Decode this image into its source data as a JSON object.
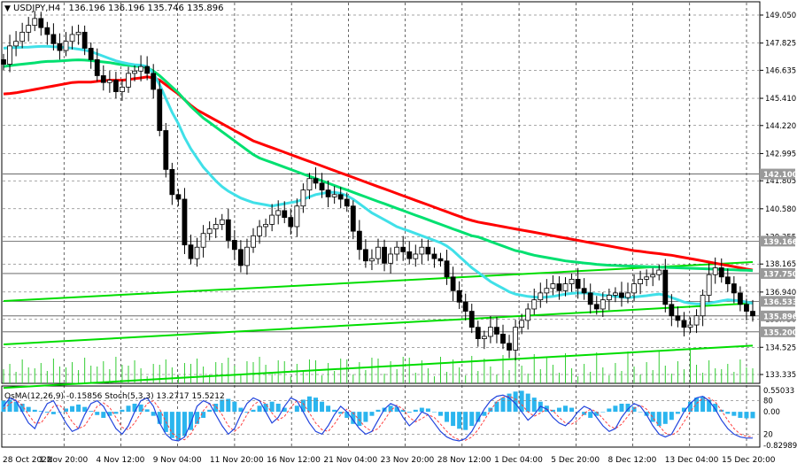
{
  "header": {
    "symbol": "USDJPY,H4",
    "ohlc": "136.196 136.196 135.746 135.896"
  },
  "indicator_header": "OsMA(12,26,9) -0.15856 Stoch(5,3,3) 13.2717 15.5212",
  "colors": {
    "candle": "#000000",
    "ema_red": "#ff0000",
    "ema_green": "#00e070",
    "ema_cyan": "#40e0e8",
    "channel": "#00dd00",
    "osma": "#2bb5ee",
    "stoch_main": "#2244dd",
    "stoch_signal": "#ff4040",
    "grid": "#000000",
    "level_line": "#555555"
  },
  "chart_data": [
    {
      "type": "line",
      "title": "USDJPY,H4",
      "price_ticks": [
        "149.050",
        "147.825",
        "146.635",
        "145.410",
        "144.220",
        "142.995",
        "141.805",
        "140.580",
        "139.355",
        "138.165",
        "136.940",
        "135.750",
        "134.525",
        "133.335"
      ],
      "ylim": [
        133.335,
        149.05
      ],
      "x_tick_labels": [
        "28 Oct 2022",
        "1 Nov 20:00",
        "4 Nov 12:00",
        "9 Nov 04:00",
        "11 Nov 20:00",
        "16 Nov 12:00",
        "21 Nov 04:00",
        "23 Nov 20:00",
        "28 Nov 12:00",
        "1 Dec 04:00",
        "5 Dec 20:00",
        "8 Dec 12:00",
        "13 Dec 04:00",
        "15 Dec 20:00"
      ],
      "level_lines": [
        {
          "value": 142.1,
          "label": "142.100"
        },
        {
          "value": 139.166,
          "label": "139.166"
        },
        {
          "value": 137.75,
          "label": "137.750"
        },
        {
          "value": 136.533,
          "label": "136.533"
        },
        {
          "value": 135.896,
          "label": "135.896"
        },
        {
          "value": 135.2,
          "label": "135.200"
        }
      ],
      "close": [
        146.9,
        147.7,
        147.9,
        148.3,
        148.6,
        148.9,
        148.5,
        148.2,
        147.8,
        147.5,
        147.9,
        148.2,
        148.3,
        147.6,
        147.1,
        146.4,
        146.1,
        146.2,
        145.7,
        145.9,
        146.5,
        146.6,
        146.8,
        146.5,
        145.8,
        144.0,
        142.3,
        141.2,
        141.0,
        139.0,
        138.4,
        138.9,
        139.5,
        139.7,
        139.9,
        140.1,
        139.2,
        138.8,
        138.1,
        138.9,
        139.4,
        139.8,
        139.9,
        140.3,
        140.5,
        140.2,
        139.8,
        140.7,
        141.4,
        141.9,
        141.7,
        141.4,
        141.1,
        141.2,
        141.0,
        140.7,
        139.6,
        138.8,
        138.3,
        138.4,
        138.9,
        138.2,
        138.6,
        138.9,
        138.7,
        138.4,
        138.6,
        138.9,
        138.6,
        138.4,
        138.3,
        137.6,
        137.0,
        136.5,
        136.1,
        135.4,
        134.9,
        135.0,
        135.4,
        135.1,
        134.7,
        134.4,
        135.4,
        135.7,
        136.2,
        136.6,
        136.9,
        137.1,
        137.3,
        137.0,
        137.3,
        137.5,
        137.1,
        136.9,
        136.4,
        136.2,
        136.6,
        136.8,
        136.9,
        136.7,
        136.9,
        137.3,
        137.5,
        137.6,
        137.7,
        137.9,
        136.4,
        135.9,
        135.7,
        135.4,
        135.5,
        135.9,
        136.8,
        137.7,
        138.0,
        137.6,
        137.3,
        136.9,
        136.4,
        136.1,
        135.9
      ],
      "series": [
        {
          "values": [
            145.6,
            145.62,
            145.65,
            145.7,
            145.75,
            145.8,
            145.85,
            145.9,
            145.95,
            146.0,
            146.05,
            146.1,
            146.12,
            146.12,
            146.12,
            146.15,
            146.18,
            146.2,
            146.2,
            146.2,
            146.23,
            146.27,
            146.3,
            146.35,
            146.3,
            146.2,
            146.0,
            145.8,
            145.6,
            145.35,
            145.1,
            144.9,
            144.75,
            144.6,
            144.45,
            144.3,
            144.15,
            144.0,
            143.85,
            143.7,
            143.55,
            143.45,
            143.35,
            143.25,
            143.15,
            143.05,
            142.95,
            142.85,
            142.75,
            142.65,
            142.55,
            142.45,
            142.35,
            142.25,
            142.15,
            142.05,
            141.95,
            141.85,
            141.75,
            141.65,
            141.55,
            141.45,
            141.35,
            141.25,
            141.15,
            141.05,
            140.95,
            140.85,
            140.75,
            140.65,
            140.55,
            140.45,
            140.35,
            140.25,
            140.15,
            140.07,
            140.0,
            139.95,
            139.9,
            139.85,
            139.8,
            139.75,
            139.7,
            139.65,
            139.6,
            139.55,
            139.5,
            139.45,
            139.4,
            139.35,
            139.3,
            139.25,
            139.2,
            139.15,
            139.1,
            139.05,
            139.0,
            138.95,
            138.9,
            138.85,
            138.8,
            138.75,
            138.72,
            138.68,
            138.65,
            138.62,
            138.58,
            138.55,
            138.5,
            138.45,
            138.4,
            138.35,
            138.3,
            138.25,
            138.2,
            138.15,
            138.1,
            138.05,
            138.0,
            137.95,
            137.9
          ]
        },
        {
          "values": [
            146.8,
            146.84,
            146.87,
            146.9,
            146.93,
            146.96,
            147.0,
            147.02,
            147.03,
            147.04,
            147.06,
            147.08,
            147.09,
            147.08,
            147.06,
            147.03,
            147.0,
            146.97,
            146.92,
            146.88,
            146.85,
            146.82,
            146.8,
            146.75,
            146.6,
            146.4,
            146.15,
            145.9,
            145.65,
            145.35,
            145.05,
            144.8,
            144.55,
            144.35,
            144.15,
            143.95,
            143.75,
            143.55,
            143.35,
            143.15,
            142.95,
            142.8,
            142.7,
            142.6,
            142.5,
            142.4,
            142.3,
            142.2,
            142.1,
            142.0,
            141.9,
            141.8,
            141.7,
            141.6,
            141.5,
            141.4,
            141.3,
            141.2,
            141.1,
            141.0,
            140.9,
            140.8,
            140.7,
            140.6,
            140.5,
            140.4,
            140.3,
            140.2,
            140.1,
            140.0,
            139.9,
            139.8,
            139.7,
            139.6,
            139.5,
            139.4,
            139.35,
            139.25,
            139.15,
            139.05,
            138.95,
            138.85,
            138.75,
            138.7,
            138.62,
            138.55,
            138.5,
            138.45,
            138.4,
            138.35,
            138.3,
            138.27,
            138.24,
            138.21,
            138.18,
            138.15,
            138.13,
            138.11,
            138.1,
            138.09,
            138.08,
            138.07,
            138.06,
            138.05,
            138.04,
            138.03,
            138.02,
            138.01,
            138.0,
            137.99,
            137.98,
            137.97,
            137.96,
            137.95,
            137.94,
            137.93,
            137.92,
            137.91,
            137.9,
            137.89,
            137.88
          ]
        },
        {
          "values": [
            147.6,
            147.62,
            147.63,
            147.64,
            147.65,
            147.67,
            147.68,
            147.68,
            147.67,
            147.65,
            147.63,
            147.6,
            147.56,
            147.52,
            147.45,
            147.35,
            147.25,
            147.15,
            147.05,
            146.98,
            146.92,
            146.88,
            146.86,
            146.8,
            146.5,
            146.0,
            145.4,
            144.8,
            144.3,
            143.7,
            143.2,
            142.8,
            142.4,
            142.1,
            141.8,
            141.55,
            141.35,
            141.2,
            141.05,
            140.95,
            140.85,
            140.8,
            140.75,
            140.7,
            140.75,
            140.8,
            140.85,
            140.9,
            141.0,
            141.1,
            141.2,
            141.25,
            141.3,
            141.3,
            141.25,
            141.15,
            141.0,
            140.8,
            140.6,
            140.4,
            140.25,
            140.1,
            139.95,
            139.8,
            139.7,
            139.6,
            139.5,
            139.4,
            139.3,
            139.2,
            139.1,
            138.95,
            138.75,
            138.5,
            138.25,
            138.0,
            137.8,
            137.6,
            137.4,
            137.25,
            137.1,
            136.95,
            136.85,
            136.8,
            136.75,
            136.72,
            136.7,
            136.72,
            136.75,
            136.8,
            136.85,
            136.88,
            136.9,
            136.9,
            136.88,
            136.85,
            136.8,
            136.78,
            136.75,
            136.72,
            136.7,
            136.72,
            136.75,
            136.78,
            136.82,
            136.85,
            136.8,
            136.7,
            136.6,
            136.5,
            136.45,
            136.42,
            136.42,
            136.45,
            136.5,
            136.55,
            136.6,
            136.58,
            136.55,
            136.5,
            136.45
          ]
        }
      ],
      "channel_lines": [
        {
          "from": [
            0,
            136.55
          ],
          "to": [
            120,
            138.25
          ]
        },
        {
          "from": [
            0,
            134.65
          ],
          "to": [
            120,
            136.45
          ]
        },
        {
          "from": [
            0,
            132.75
          ],
          "to": [
            120,
            134.6
          ]
        }
      ]
    },
    {
      "type": "bar",
      "title": "OsMA(12,26,9) -0.15856 Stoch(5,3,3) 13.2717 15.5212",
      "ticks": [
        "0.55033",
        "80",
        "0.00",
        "20",
        "-0.82989"
      ],
      "osma_range": [
        -0.82989,
        0.55033
      ],
      "stoch_levels": [
        20,
        80
      ],
      "osma": [
        0.28,
        0.3,
        0.25,
        0.2,
        0.12,
        0.05,
        0.02,
        -0.02,
        -0.06,
        0.0,
        0.08,
        0.14,
        0.18,
        0.12,
        0.02,
        -0.08,
        -0.15,
        -0.1,
        -0.05,
        0.05,
        0.15,
        0.2,
        0.18,
        0.06,
        -0.1,
        -0.3,
        -0.5,
        -0.65,
        -0.7,
        -0.6,
        -0.45,
        -0.3,
        -0.15,
        0.05,
        0.2,
        0.3,
        0.32,
        0.25,
        0.1,
        -0.02,
        0.05,
        0.15,
        0.2,
        0.25,
        0.2,
        0.1,
        0.0,
        0.15,
        0.3,
        0.38,
        0.35,
        0.25,
        0.15,
        0.05,
        -0.05,
        -0.15,
        -0.3,
        -0.35,
        -0.25,
        -0.1,
        0.05,
        0.1,
        0.15,
        0.12,
        0.05,
        -0.02,
        0.05,
        0.1,
        0.08,
        0.0,
        -0.1,
        -0.25,
        -0.35,
        -0.42,
        -0.45,
        -0.35,
        -0.25,
        -0.1,
        0.1,
        0.25,
        0.35,
        0.45,
        0.5,
        0.52,
        0.45,
        0.35,
        0.25,
        0.15,
        0.05,
        0.1,
        0.15,
        0.1,
        0.0,
        -0.08,
        -0.15,
        -0.1,
        0.0,
        0.08,
        0.15,
        0.2,
        0.2,
        0.12,
        0.0,
        -0.1,
        -0.25,
        -0.35,
        -0.3,
        -0.2,
        -0.05,
        0.1,
        0.25,
        0.35,
        0.38,
        0.3,
        0.2,
        0.05,
        -0.05,
        -0.1,
        -0.15,
        -0.16,
        -0.16
      ],
      "stoch_main": [
        70,
        85,
        80,
        60,
        40,
        30,
        55,
        75,
        80,
        60,
        40,
        25,
        30,
        55,
        75,
        80,
        70,
        50,
        30,
        20,
        35,
        60,
        80,
        85,
        70,
        40,
        20,
        10,
        8,
        15,
        40,
        70,
        80,
        75,
        55,
        35,
        20,
        30,
        55,
        75,
        85,
        80,
        60,
        40,
        50,
        70,
        85,
        80,
        60,
        40,
        25,
        20,
        35,
        55,
        70,
        60,
        45,
        30,
        20,
        25,
        45,
        65,
        75,
        70,
        50,
        35,
        45,
        60,
        55,
        40,
        25,
        15,
        10,
        8,
        12,
        25,
        45,
        65,
        80,
        88,
        90,
        85,
        75,
        60,
        45,
        55,
        70,
        65,
        50,
        40,
        35,
        45,
        60,
        70,
        65,
        50,
        35,
        25,
        30,
        50,
        65,
        75,
        70,
        55,
        35,
        20,
        15,
        20,
        40,
        60,
        75,
        85,
        88,
        80,
        65,
        45,
        30,
        20,
        15,
        13,
        13
      ],
      "stoch_signal": [
        65,
        75,
        82,
        72,
        55,
        40,
        40,
        55,
        70,
        72,
        60,
        42,
        30,
        35,
        52,
        70,
        76,
        68,
        50,
        32,
        28,
        40,
        58,
        75,
        80,
        65,
        42,
        22,
        12,
        10,
        20,
        40,
        62,
        75,
        70,
        55,
        35,
        25,
        35,
        55,
        72,
        80,
        75,
        58,
        45,
        52,
        68,
        80,
        75,
        58,
        40,
        28,
        25,
        38,
        55,
        65,
        58,
        45,
        32,
        25,
        30,
        45,
        62,
        72,
        65,
        50,
        42,
        48,
        55,
        50,
        38,
        25,
        15,
        10,
        9,
        15,
        28,
        45,
        63,
        78,
        86,
        88,
        83,
        73,
        60,
        52,
        58,
        65,
        62,
        50,
        40,
        38,
        45,
        57,
        65,
        60,
        48,
        35,
        30,
        38,
        52,
        66,
        72,
        65,
        50,
        35,
        22,
        18,
        25,
        42,
        60,
        75,
        84,
        85,
        78,
        62,
        45,
        30,
        20,
        16,
        15.5
      ]
    }
  ]
}
